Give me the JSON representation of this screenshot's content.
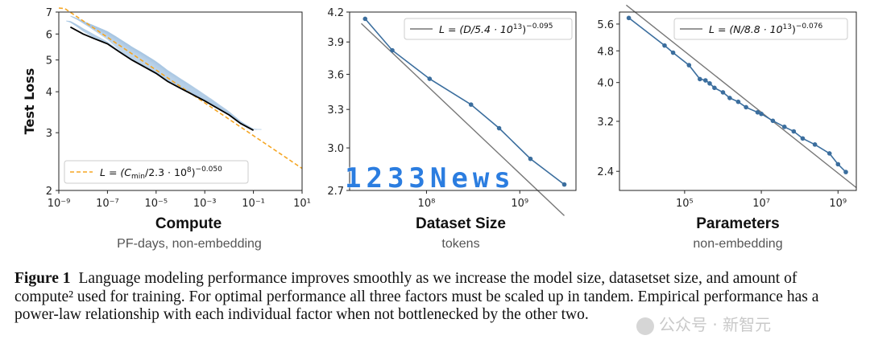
{
  "chart_data": [
    {
      "type": "line",
      "xscale": "log",
      "yscale": "log",
      "xlim": [
        1e-09,
        10
      ],
      "ylim": [
        2,
        7
      ],
      "ylabel": "Test Loss",
      "title": "Compute",
      "subtitle": "PF-days, non-embedding",
      "xticks": [
        "10⁻⁹",
        "10⁻⁷",
        "10⁻⁵",
        "10⁻³",
        "10⁻¹",
        "10¹"
      ],
      "yticks": [
        "2",
        "3",
        "4",
        "5",
        "6",
        "7"
      ],
      "legend": "L = (C_min/2.3 · 10⁸)⁻⁰·⁰⁵⁰",
      "legend_parts": {
        "pre": "L = (C",
        "sub": "min",
        "mid": "/2.3 · 10",
        "sup1": "8",
        "post": ")",
        "sup2": "−0.050"
      },
      "legend_position": "bottom-left",
      "fit": {
        "scale": 230000000.0,
        "exponent": -0.05
      },
      "frontier": {
        "x": [
          3e-09,
          1e-08,
          3e-08,
          1e-07,
          3e-07,
          1e-06,
          1e-05,
          3e-05,
          0.0001,
          0.001,
          0.01,
          0.03,
          0.1
        ],
        "y": [
          6.3,
          6.0,
          5.8,
          5.6,
          5.3,
          5.0,
          4.55,
          4.3,
          4.1,
          3.75,
          3.4,
          3.2,
          3.05
        ]
      },
      "colors": {
        "fit": "#f5a623",
        "frontier": "#000000",
        "curves": "#a9c7e3"
      }
    },
    {
      "type": "line",
      "xscale": "log",
      "yscale": "log",
      "xlim": [
        15000000.0,
        4000000000.0
      ],
      "ylim": [
        2.7,
        4.2
      ],
      "title": "Dataset Size",
      "subtitle": "tokens",
      "xticks": [
        "10⁸",
        "10⁹"
      ],
      "yticks": [
        "2.7",
        "3.0",
        "3.3",
        "3.6",
        "3.9",
        "4.2"
      ],
      "legend_parts": {
        "pre": "L = (D/5.4 · 10",
        "sup1": "13",
        "post": ")",
        "sup2": "−0.095"
      },
      "legend_position": "top-right",
      "fit": {
        "scale": 54000000000000.0,
        "exponent": -0.095
      },
      "points": {
        "x": [
          22000000.0,
          43000000.0,
          108000000.0,
          300000000.0,
          600000000.0,
          1300000000.0,
          3000000000.0
        ],
        "y": [
          4.13,
          3.82,
          3.56,
          3.34,
          3.15,
          2.92,
          2.74
        ]
      },
      "colors": {
        "points": "#3b6e9e",
        "fit": "#777777"
      }
    },
    {
      "type": "line",
      "xscale": "log",
      "yscale": "log",
      "xlim": [
        2000.0,
        3000000000.0
      ],
      "ylim": [
        2.15,
        6.0
      ],
      "title": "Parameters",
      "subtitle": "non-embedding",
      "xticks": [
        "10⁵",
        "10⁷",
        "10⁹"
      ],
      "yticks": [
        "2.4",
        "3.2",
        "4.0",
        "4.8",
        "5.6"
      ],
      "legend_parts": {
        "pre": "L = (N/8.8 · 10",
        "sup1": "13",
        "post": ")",
        "sup2": "−0.076"
      },
      "legend_position": "top-right",
      "fit": {
        "scale": 88000000000000.0,
        "exponent": -0.076
      },
      "points": {
        "x": [
          3500.0,
          30000.0,
          50000.0,
          130000.0,
          250000.0,
          350000.0,
          450000.0,
          600000.0,
          1000000.0,
          1500000.0,
          2500000.0,
          4000000.0,
          8000000.0,
          10000000.0,
          20000000.0,
          40000000.0,
          70000000.0,
          120000000.0,
          250000000.0,
          600000000.0,
          1000000000.0,
          1600000000.0
        ],
        "y": [
          5.8,
          4.95,
          4.75,
          4.42,
          4.08,
          4.05,
          3.98,
          3.88,
          3.78,
          3.66,
          3.58,
          3.47,
          3.37,
          3.34,
          3.21,
          3.1,
          3.02,
          2.9,
          2.8,
          2.66,
          2.5,
          2.39
        ]
      },
      "colors": {
        "points": "#3b6e9e",
        "fit": "#777777"
      }
    }
  ],
  "caption": {
    "label": "Figure 1",
    "text": "Language modeling performance improves smoothly as we increase the model size, datasetset size, and amount of compute² used for training. For optimal performance all three factors must be scaled up in tandem. Empirical performance has a power-law relationship with each individual factor when not bottlenecked by the other two."
  },
  "watermarks": {
    "main": "1233News",
    "secondary": "公众号 · 新智元"
  }
}
